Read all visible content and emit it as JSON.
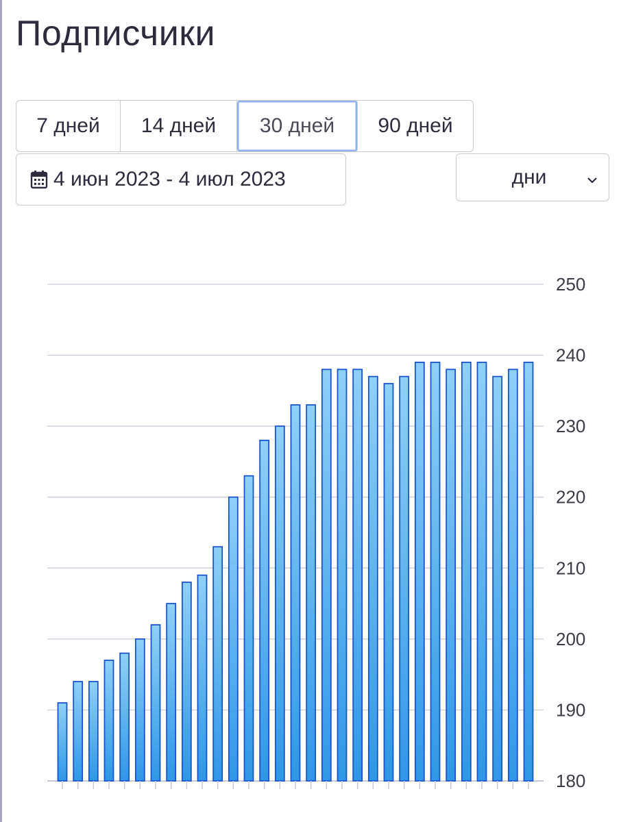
{
  "header": {
    "title": "Подписчики"
  },
  "range_buttons": [
    {
      "label": "7 дней",
      "active": false
    },
    {
      "label": "14 дней",
      "active": false
    },
    {
      "label": "30 дней",
      "active": true
    },
    {
      "label": "90 дней",
      "active": false
    }
  ],
  "date_range": {
    "label": "4 июн 2023 - 4 июл 2023",
    "icon": "calendar-icon"
  },
  "granularity_select": {
    "value": "дни",
    "icon": "chevron-down-icon"
  },
  "colors": {
    "bar_fill_top": "#8fd0f7",
    "bar_fill_bottom": "#2f97e6",
    "bar_stroke": "#1a55c9",
    "gridline": "#c9c9d6",
    "tick_label": "#3b3b46"
  },
  "chart_data": {
    "type": "bar",
    "title": "",
    "xlabel": "",
    "ylabel": "",
    "ylim": [
      180,
      250
    ],
    "y_ticks": [
      "180",
      "190",
      "200",
      "210",
      "220",
      "230",
      "240",
      "250"
    ],
    "y_axis_position": "right",
    "grid": true,
    "legend": "none",
    "series": [
      {
        "values": [
          191,
          194,
          194,
          197,
          198,
          200,
          202,
          205,
          208,
          209,
          213,
          220,
          223,
          228,
          230,
          233,
          233,
          238,
          238,
          238,
          237,
          236,
          237,
          239,
          239,
          238,
          239,
          239,
          237,
          238,
          239
        ]
      }
    ]
  }
}
